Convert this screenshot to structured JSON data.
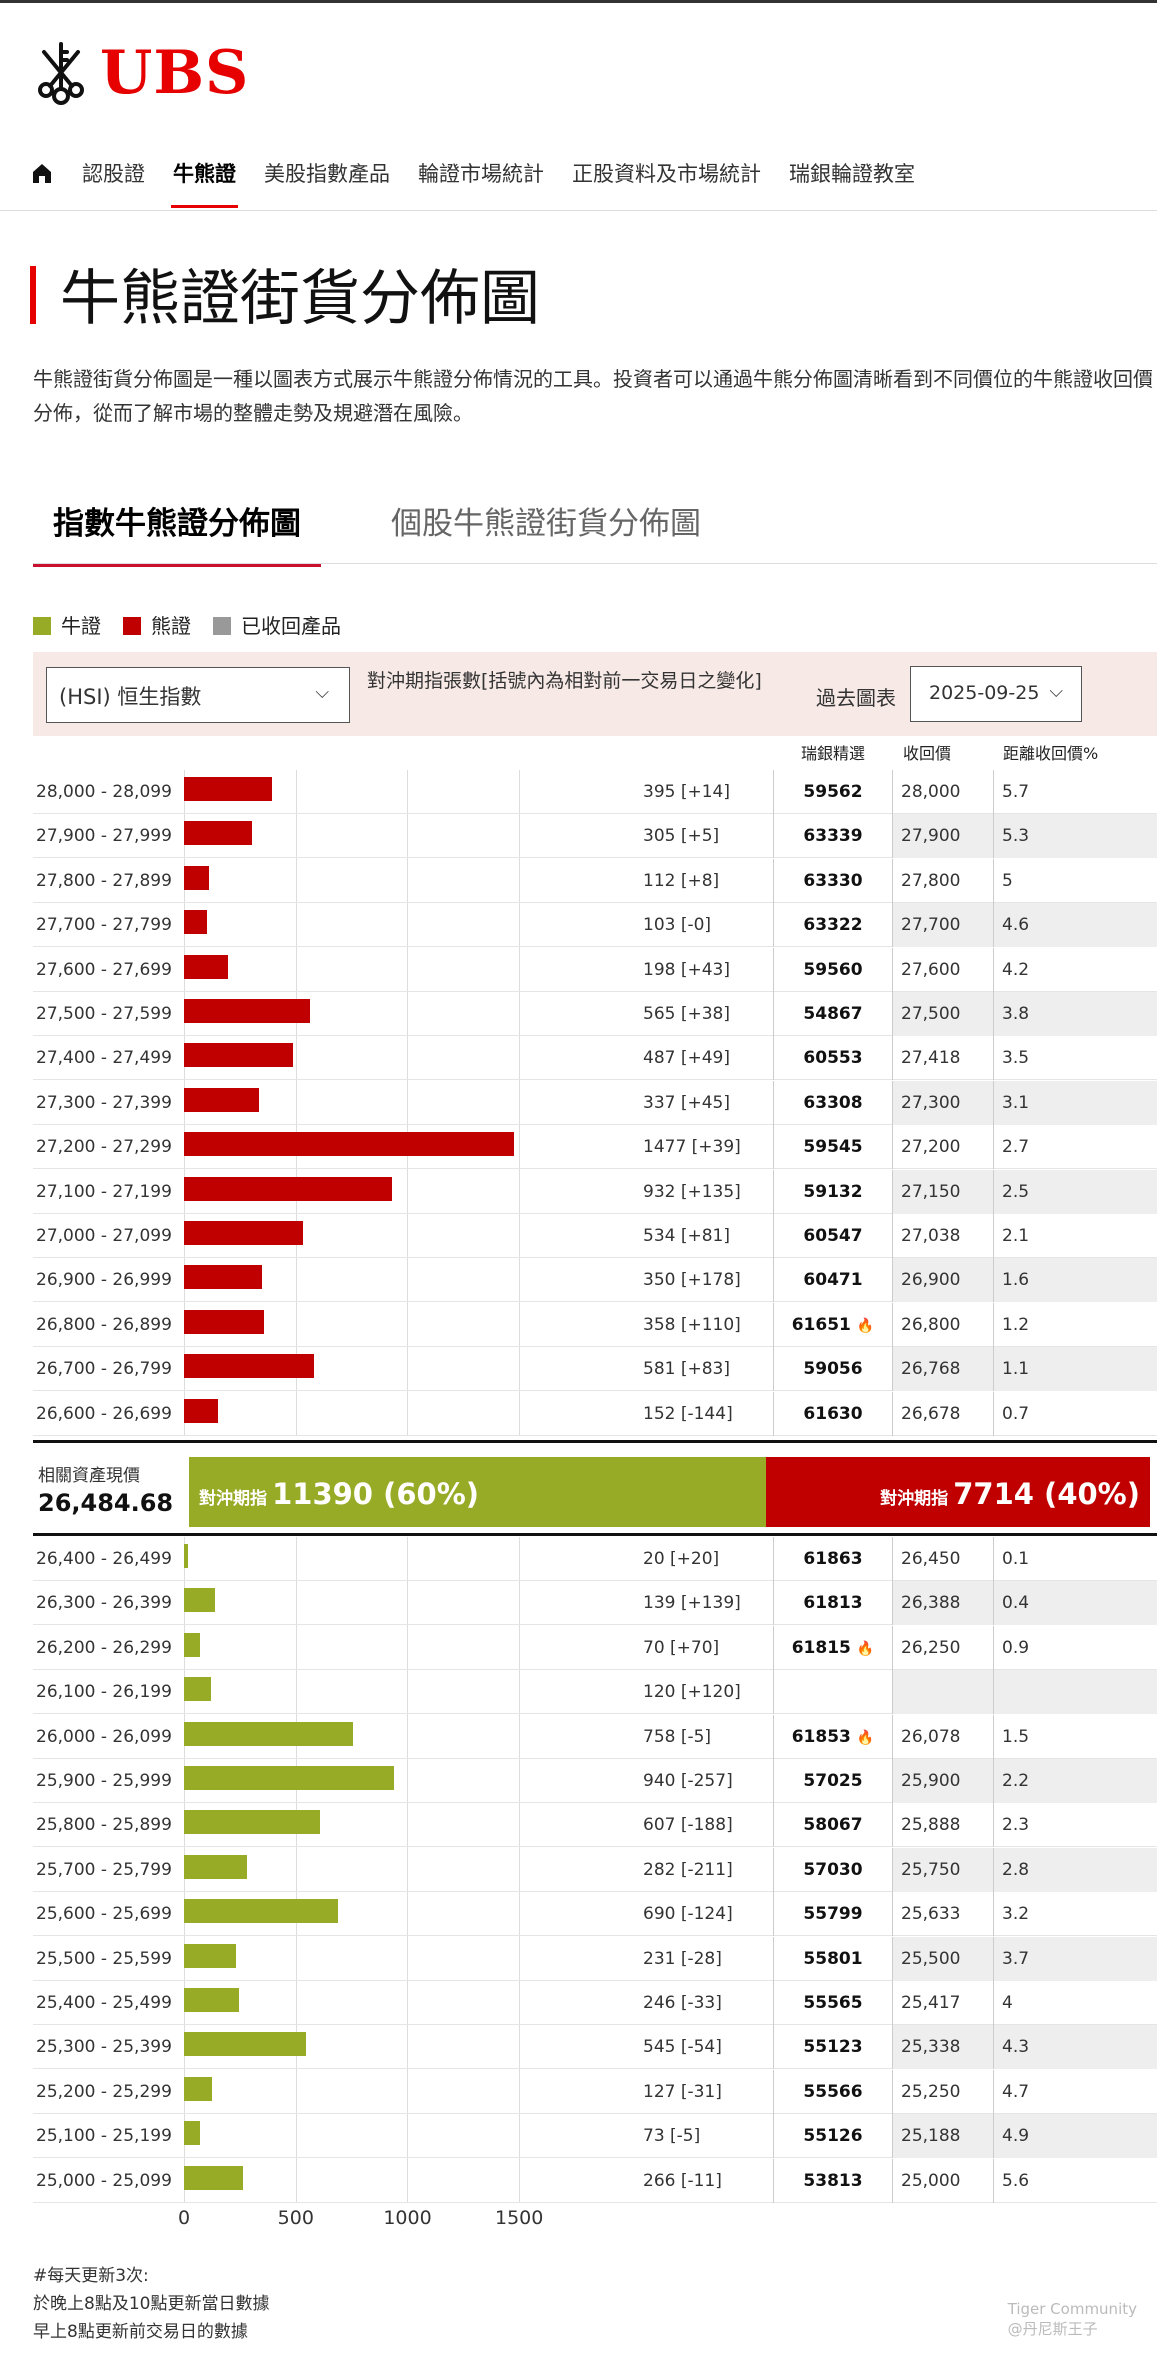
{
  "brand": {
    "name": "UBS",
    "red": "#e60000"
  },
  "nav": {
    "home_icon": "home-icon",
    "items": [
      "認股證",
      "牛熊證",
      "美股指數產品",
      "輪證市場統計",
      "正股資料及市場統計",
      "瑞銀輪證教室"
    ],
    "active": "牛熊證"
  },
  "page": {
    "title": "牛熊證街貨分佈圖",
    "description": "牛熊證街貨分佈圖是一種以圖表方式展示牛熊證分佈情況的工具。投資者可以通過牛熊分佈圖清晰看到不同價位的牛熊證收回價分佈，從而了解市場的整體走勢及規避潛在風險。"
  },
  "tabs": [
    "指數牛熊證分佈圖",
    "個股牛熊證街貨分佈圖"
  ],
  "legend": [
    {
      "label": "牛證",
      "color": "#98ab26"
    },
    {
      "label": "熊證",
      "color": "#c00000"
    },
    {
      "label": "已收回產品",
      "color": "#999999"
    }
  ],
  "controls": {
    "index_select": "(HSI) 恒生指數",
    "note": "對沖期指張數[括號內為相對前一交易日之變化]",
    "past_label": "過去圖表",
    "date": "2025-09-25"
  },
  "columns": {
    "ubs": "瑞銀精選",
    "call": "收回價",
    "dist": "距離收回價%"
  },
  "current": {
    "label": "相關資產現價",
    "value": "26,484.68",
    "bull_label": "對沖期指",
    "bull_value": "11390 (60%)",
    "bear_label": "對沖期指",
    "bear_value": "7714 (40%)",
    "bull_share": 0.6
  },
  "chart_data": {
    "type": "bar",
    "xlim": [
      0,
      1500
    ],
    "x_ticks": [
      "0",
      "500",
      "1000",
      "1500"
    ],
    "bear_rows": [
      {
        "range": "28,000 - 28,099",
        "value": 395,
        "label": "395 [+14]",
        "ubs": "59562",
        "call": "28,000",
        "dist": "5.7",
        "hot": false
      },
      {
        "range": "27,900 - 27,999",
        "value": 305,
        "label": "305 [+5]",
        "ubs": "63339",
        "call": "27,900",
        "dist": "5.3",
        "hot": false
      },
      {
        "range": "27,800 - 27,899",
        "value": 112,
        "label": "112 [+8]",
        "ubs": "63330",
        "call": "27,800",
        "dist": "5",
        "hot": false
      },
      {
        "range": "27,700 - 27,799",
        "value": 103,
        "label": "103 [-0]",
        "ubs": "63322",
        "call": "27,700",
        "dist": "4.6",
        "hot": false
      },
      {
        "range": "27,600 - 27,699",
        "value": 198,
        "label": "198 [+43]",
        "ubs": "59560",
        "call": "27,600",
        "dist": "4.2",
        "hot": false
      },
      {
        "range": "27,500 - 27,599",
        "value": 565,
        "label": "565 [+38]",
        "ubs": "54867",
        "call": "27,500",
        "dist": "3.8",
        "hot": false
      },
      {
        "range": "27,400 - 27,499",
        "value": 487,
        "label": "487 [+49]",
        "ubs": "60553",
        "call": "27,418",
        "dist": "3.5",
        "hot": false
      },
      {
        "range": "27,300 - 27,399",
        "value": 337,
        "label": "337 [+45]",
        "ubs": "63308",
        "call": "27,300",
        "dist": "3.1",
        "hot": false
      },
      {
        "range": "27,200 - 27,299",
        "value": 1477,
        "label": "1477 [+39]",
        "ubs": "59545",
        "call": "27,200",
        "dist": "2.7",
        "hot": false
      },
      {
        "range": "27,100 - 27,199",
        "value": 932,
        "label": "932 [+135]",
        "ubs": "59132",
        "call": "27,150",
        "dist": "2.5",
        "hot": false
      },
      {
        "range": "27,000 - 27,099",
        "value": 534,
        "label": "534 [+81]",
        "ubs": "60547",
        "call": "27,038",
        "dist": "2.1",
        "hot": false
      },
      {
        "range": "26,900 - 26,999",
        "value": 350,
        "label": "350 [+178]",
        "ubs": "60471",
        "call": "26,900",
        "dist": "1.6",
        "hot": false
      },
      {
        "range": "26,800 - 26,899",
        "value": 358,
        "label": "358 [+110]",
        "ubs": "61651",
        "call": "26,800",
        "dist": "1.2",
        "hot": true
      },
      {
        "range": "26,700 - 26,799",
        "value": 581,
        "label": "581 [+83]",
        "ubs": "59056",
        "call": "26,768",
        "dist": "1.1",
        "hot": false
      },
      {
        "range": "26,600 - 26,699",
        "value": 152,
        "label": "152 [-144]",
        "ubs": "61630",
        "call": "26,678",
        "dist": "0.7",
        "hot": false
      }
    ],
    "bull_rows": [
      {
        "range": "26,400 - 26,499",
        "value": 20,
        "label": "20 [+20]",
        "ubs": "61863",
        "call": "26,450",
        "dist": "0.1",
        "hot": false
      },
      {
        "range": "26,300 - 26,399",
        "value": 139,
        "label": "139 [+139]",
        "ubs": "61813",
        "call": "26,388",
        "dist": "0.4",
        "hot": false
      },
      {
        "range": "26,200 - 26,299",
        "value": 70,
        "label": "70 [+70]",
        "ubs": "61815",
        "call": "26,250",
        "dist": "0.9",
        "hot": true
      },
      {
        "range": "26,100 - 26,199",
        "value": 120,
        "label": "120 [+120]",
        "ubs": "",
        "call": "",
        "dist": "",
        "hot": false
      },
      {
        "range": "26,000 - 26,099",
        "value": 758,
        "label": "758 [-5]",
        "ubs": "61853",
        "call": "26,078",
        "dist": "1.5",
        "hot": true
      },
      {
        "range": "25,900 - 25,999",
        "value": 940,
        "label": "940 [-257]",
        "ubs": "57025",
        "call": "25,900",
        "dist": "2.2",
        "hot": false
      },
      {
        "range": "25,800 - 25,899",
        "value": 607,
        "label": "607 [-188]",
        "ubs": "58067",
        "call": "25,888",
        "dist": "2.3",
        "hot": false
      },
      {
        "range": "25,700 - 25,799",
        "value": 282,
        "label": "282 [-211]",
        "ubs": "57030",
        "call": "25,750",
        "dist": "2.8",
        "hot": false
      },
      {
        "range": "25,600 - 25,699",
        "value": 690,
        "label": "690 [-124]",
        "ubs": "55799",
        "call": "25,633",
        "dist": "3.2",
        "hot": false
      },
      {
        "range": "25,500 - 25,599",
        "value": 231,
        "label": "231 [-28]",
        "ubs": "55801",
        "call": "25,500",
        "dist": "3.7",
        "hot": false
      },
      {
        "range": "25,400 - 25,499",
        "value": 246,
        "label": "246 [-33]",
        "ubs": "55565",
        "call": "25,417",
        "dist": "4",
        "hot": false
      },
      {
        "range": "25,300 - 25,399",
        "value": 545,
        "label": "545 [-54]",
        "ubs": "55123",
        "call": "25,338",
        "dist": "4.3",
        "hot": false
      },
      {
        "range": "25,200 - 25,299",
        "value": 127,
        "label": "127 [-31]",
        "ubs": "55566",
        "call": "25,250",
        "dist": "4.7",
        "hot": false
      },
      {
        "range": "25,100 - 25,199",
        "value": 73,
        "label": "73 [-5]",
        "ubs": "55126",
        "call": "25,188",
        "dist": "4.9",
        "hot": false
      },
      {
        "range": "25,000 - 25,099",
        "value": 266,
        "label": "266 [-11]",
        "ubs": "53813",
        "call": "25,000",
        "dist": "5.6",
        "hot": false
      }
    ]
  },
  "footer": {
    "lines": [
      "#每天更新3次:",
      "於晚上8點及10點更新當日數據",
      "早上8點更新前交易日的數據"
    ]
  },
  "watermark": {
    "line1": "Tiger Community",
    "line2": "@丹尼斯王子"
  }
}
